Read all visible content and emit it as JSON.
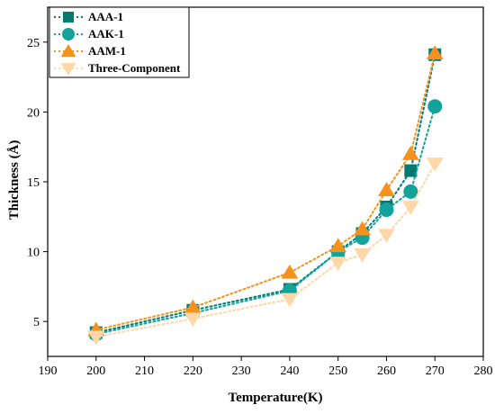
{
  "chart_data": {
    "type": "line",
    "xlabel": "Temperature(K)",
    "ylabel": "Thickness (Å)",
    "xlim": [
      190,
      280
    ],
    "ylim": [
      2.5,
      27.5
    ],
    "xticks": [
      190,
      200,
      210,
      220,
      230,
      240,
      250,
      260,
      270,
      280
    ],
    "yticks": [
      5,
      10,
      15,
      20,
      25
    ],
    "grid": false,
    "legend_position": "top-left",
    "series": [
      {
        "name": "AAA-1",
        "marker": "square",
        "color": "#007A73",
        "x": [
          200,
          220,
          240,
          250,
          255,
          260,
          265,
          270
        ],
        "y": [
          4.2,
          5.8,
          7.3,
          10.0,
          11.3,
          13.2,
          15.8,
          24.1
        ]
      },
      {
        "name": "AAK-1",
        "marker": "circle",
        "color": "#13A39A",
        "x": [
          200,
          220,
          240,
          250,
          255,
          260,
          265,
          270
        ],
        "y": [
          4.1,
          5.6,
          7.2,
          10.0,
          11.0,
          13.0,
          14.3,
          20.4
        ]
      },
      {
        "name": "AAM-1",
        "marker": "triangle-up",
        "color": "#F5921E",
        "x": [
          200,
          220,
          240,
          250,
          255,
          260,
          265,
          270
        ],
        "y": [
          4.4,
          6.0,
          8.5,
          10.4,
          11.6,
          14.4,
          17.0,
          24.2
        ]
      },
      {
        "name": "Three-Component",
        "marker": "triangle-down",
        "color": "#FFD7A8",
        "x": [
          200,
          220,
          240,
          250,
          255,
          260,
          265,
          270
        ],
        "y": [
          3.9,
          5.2,
          6.6,
          9.2,
          9.8,
          11.2,
          13.2,
          16.3
        ]
      }
    ]
  }
}
